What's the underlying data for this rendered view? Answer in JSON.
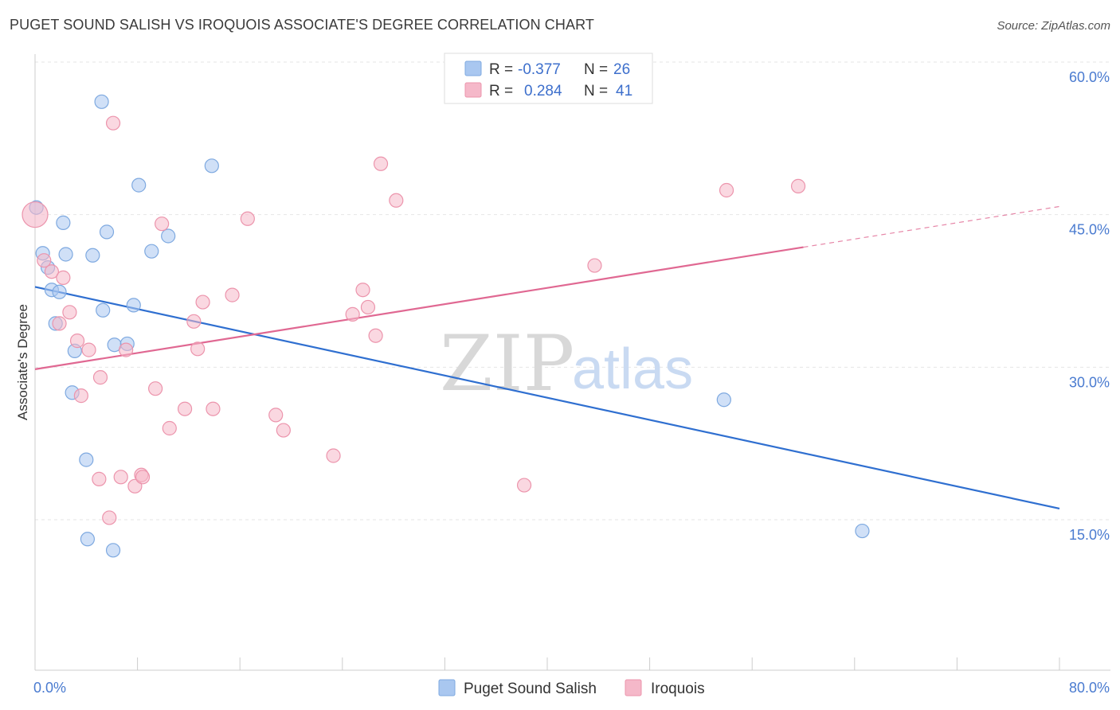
{
  "header": {
    "title": "PUGET SOUND SALISH VS IROQUOIS ASSOCIATE'S DEGREE CORRELATION CHART",
    "source": "Source: ZipAtlas.com"
  },
  "watermark": {
    "zip": "ZIP",
    "atlas": "atlas"
  },
  "legend": {
    "rows": [
      {
        "r_label": "R =",
        "r_value": "-0.377",
        "n_label": "N =",
        "n_value": "26",
        "color": "#a9c7f0"
      },
      {
        "r_label": "R =",
        "r_value": "0.284",
        "n_label": "N =",
        "n_value": "41",
        "color": "#f5b8c9"
      }
    ]
  },
  "chart_data": {
    "type": "scatter",
    "title": "PUGET SOUND SALISH VS IROQUOIS ASSOCIATE'S DEGREE CORRELATION CHART",
    "ylabel": "Associate's Degree",
    "xlabel": "",
    "xlim": [
      0,
      80
    ],
    "ylim": [
      0,
      63
    ],
    "x_tick_labels": [
      {
        "value": 0,
        "label": "0.0%"
      },
      {
        "value": 80,
        "label": "80.0%"
      }
    ],
    "y_tick_labels": [
      {
        "value": 15,
        "label": "15.0%"
      },
      {
        "value": 30,
        "label": "30.0%"
      },
      {
        "value": 45,
        "label": "45.0%"
      },
      {
        "value": 60,
        "label": "60.0%"
      }
    ],
    "grid": true,
    "legend_position": "top-center",
    "series": [
      {
        "name": "Puget Sound Salish",
        "color": "#a9c7f0",
        "stroke": "#7ea9e0",
        "line_color": "#2f6fd0",
        "trend": {
          "x": [
            0,
            80
          ],
          "y": [
            37.9,
            16.1
          ],
          "dashed_from": null
        },
        "points": [
          [
            0.1,
            45.7
          ],
          [
            0.6,
            41.2
          ],
          [
            1.0,
            39.8
          ],
          [
            1.3,
            37.6
          ],
          [
            1.6,
            34.3
          ],
          [
            1.9,
            37.4
          ],
          [
            2.2,
            44.2
          ],
          [
            2.4,
            41.1
          ],
          [
            2.9,
            27.5
          ],
          [
            3.1,
            31.6
          ],
          [
            4.0,
            20.9
          ],
          [
            4.1,
            13.1
          ],
          [
            4.5,
            41.0
          ],
          [
            5.3,
            35.6
          ],
          [
            5.2,
            56.1
          ],
          [
            5.6,
            43.3
          ],
          [
            6.1,
            12.0
          ],
          [
            6.2,
            32.2
          ],
          [
            7.2,
            32.3
          ],
          [
            7.7,
            36.1
          ],
          [
            8.1,
            47.9
          ],
          [
            9.1,
            41.4
          ],
          [
            10.4,
            42.9
          ],
          [
            13.8,
            49.8
          ],
          [
            53.8,
            26.8
          ],
          [
            64.6,
            13.9
          ]
        ]
      },
      {
        "name": "Iroquois",
        "color": "#f5b8c9",
        "stroke": "#ec94ac",
        "line_color": "#e06892",
        "trend": {
          "x": [
            0,
            80
          ],
          "y": [
            29.8,
            45.8
          ],
          "dashed_from": 60
        },
        "points": [
          [
            0.0,
            45.0
          ],
          [
            0.7,
            40.5
          ],
          [
            1.3,
            39.4
          ],
          [
            1.9,
            34.3
          ],
          [
            2.2,
            38.8
          ],
          [
            2.7,
            35.4
          ],
          [
            3.3,
            32.6
          ],
          [
            3.6,
            27.2
          ],
          [
            4.2,
            31.7
          ],
          [
            5.0,
            19.0
          ],
          [
            5.1,
            29.0
          ],
          [
            5.8,
            15.2
          ],
          [
            6.1,
            54.0
          ],
          [
            6.7,
            19.2
          ],
          [
            7.1,
            31.7
          ],
          [
            7.8,
            18.3
          ],
          [
            8.3,
            19.4
          ],
          [
            8.4,
            19.2
          ],
          [
            9.4,
            27.9
          ],
          [
            9.9,
            44.1
          ],
          [
            10.5,
            24.0
          ],
          [
            11.7,
            25.9
          ],
          [
            12.7,
            31.8
          ],
          [
            12.4,
            34.5
          ],
          [
            13.1,
            36.4
          ],
          [
            13.9,
            25.9
          ],
          [
            15.4,
            37.1
          ],
          [
            16.6,
            44.6
          ],
          [
            18.8,
            25.3
          ],
          [
            19.4,
            23.8
          ],
          [
            23.3,
            21.3
          ],
          [
            24.8,
            35.2
          ],
          [
            25.6,
            37.6
          ],
          [
            26.0,
            35.9
          ],
          [
            26.6,
            33.1
          ],
          [
            27.0,
            50.0
          ],
          [
            28.2,
            46.4
          ],
          [
            38.2,
            18.4
          ],
          [
            43.7,
            40.0
          ],
          [
            54.0,
            47.4
          ],
          [
            59.6,
            47.8
          ]
        ]
      }
    ]
  }
}
